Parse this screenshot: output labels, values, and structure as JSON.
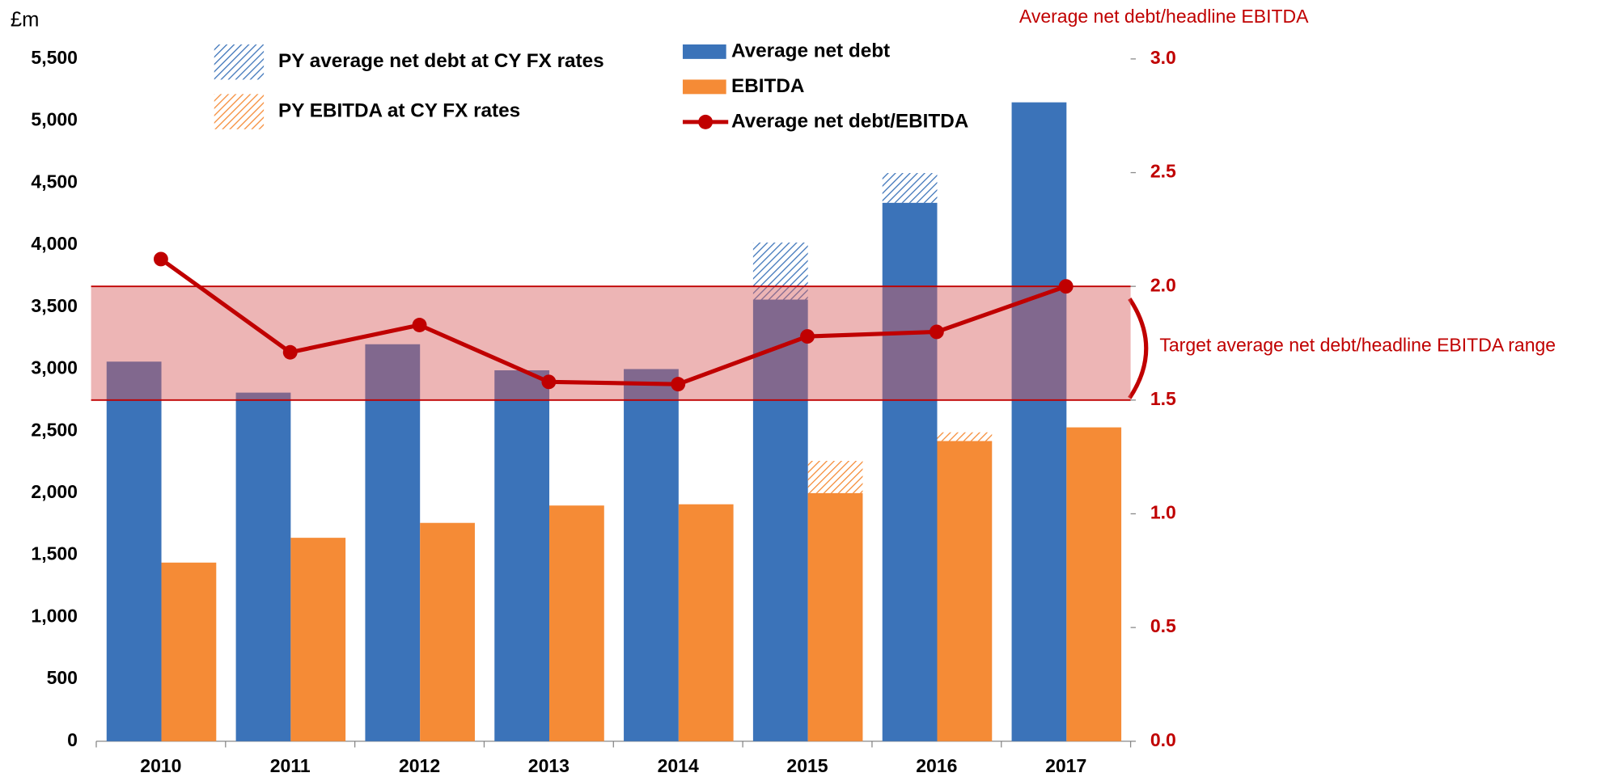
{
  "chart_data": {
    "type": "bar",
    "y_axis_label": "£m",
    "y2_axis_label": "Average net debt/headline EBITDA",
    "categories": [
      "2010",
      "2011",
      "2012",
      "2013",
      "2014",
      "2015",
      "2016",
      "2017"
    ],
    "series": [
      {
        "name": "Average net debt",
        "color": "#3b73b9",
        "values": [
          3060,
          2810,
          3200,
          2990,
          3000,
          3560,
          4340,
          5150
        ]
      },
      {
        "name": "EBITDA",
        "color": "#f58b36",
        "values": [
          1440,
          1640,
          1760,
          1900,
          1910,
          2000,
          2420,
          2530
        ]
      },
      {
        "name": "PY average net debt at CY FX rates",
        "color": "#3a3a8c",
        "hatched": true,
        "values": [
          null,
          null,
          null,
          null,
          null,
          4020,
          4580,
          null
        ]
      },
      {
        "name": "PY EBITDA at CY FX rates",
        "color": "#f58b36",
        "hatched": true,
        "values": [
          null,
          null,
          null,
          null,
          null,
          2260,
          2490,
          null
        ]
      },
      {
        "name": "Average net debt/EBITDA",
        "type": "line",
        "axis": "y2",
        "color": "#c00000",
        "values": [
          2.12,
          1.71,
          1.83,
          1.58,
          1.57,
          1.78,
          1.8,
          2.0
        ]
      }
    ],
    "target_range": {
      "label": "Target average net debt/headline EBITDA range",
      "values": [
        1.5,
        2.0
      ],
      "color": "#c00000"
    },
    "ylim": [
      0,
      5500
    ],
    "yticks": [
      0,
      500,
      {
        "value": 1000,
        "label": "1,000"
      },
      {
        "value": 1500,
        "label": "1,500"
      },
      {
        "value": 2000,
        "label": "2,000"
      },
      {
        "value": 2500,
        "label": "2,500"
      },
      {
        "value": 3000,
        "label": "3,000"
      },
      {
        "value": 3500,
        "label": "3,500"
      },
      {
        "value": 4000,
        "label": "4,000"
      },
      {
        "value": 4500,
        "label": "4,500"
      },
      {
        "value": 5000,
        "label": "5,000"
      },
      {
        "value": 5500,
        "label": "5,500"
      }
    ],
    "y2lim": [
      0,
      3.0
    ],
    "y2ticks": [
      {
        "value": 0,
        "label": "0.0"
      },
      {
        "value": 0.5,
        "label": "0.5"
      },
      {
        "value": 1,
        "label": "1.0"
      },
      {
        "value": 1.5,
        "label": "1.5"
      },
      {
        "value": 2,
        "label": "2.0"
      },
      {
        "value": 2.5,
        "label": "2.5"
      },
      {
        "value": 3,
        "label": "3.0"
      }
    ]
  }
}
